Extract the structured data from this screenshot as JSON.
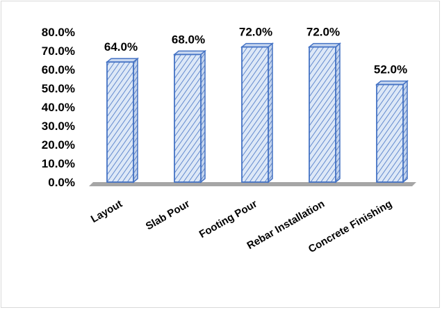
{
  "chart_data": {
    "type": "bar",
    "title": "",
    "xlabel": "",
    "ylabel": "",
    "categories": [
      "Layout",
      "Slab Pour",
      "Footing Pour",
      "Rebar Installation",
      "Concrete Finishing"
    ],
    "values": [
      64.0,
      68.0,
      72.0,
      72.0,
      52.0
    ],
    "data_labels": [
      "64.0%",
      "68.0%",
      "72.0%",
      "72.0%",
      "52.0%"
    ],
    "ylim": [
      0,
      80
    ],
    "yticks": [
      0,
      10,
      20,
      30,
      40,
      50,
      60,
      70,
      80
    ],
    "ytick_labels": [
      "0.0%",
      "10.0%",
      "20.0%",
      "30.0%",
      "40.0%",
      "50.0%",
      "60.0%",
      "70.0%",
      "80.0%"
    ],
    "grid": false,
    "legend": "none",
    "bar_style": "3d-column-hatched",
    "colors": {
      "bar_fill": "#dde8f7",
      "bar_hatch": "#4472c4",
      "bar_edge": "#4472c4",
      "floor": "#a6a6a6",
      "frame_border": "#d9d9d9"
    }
  }
}
